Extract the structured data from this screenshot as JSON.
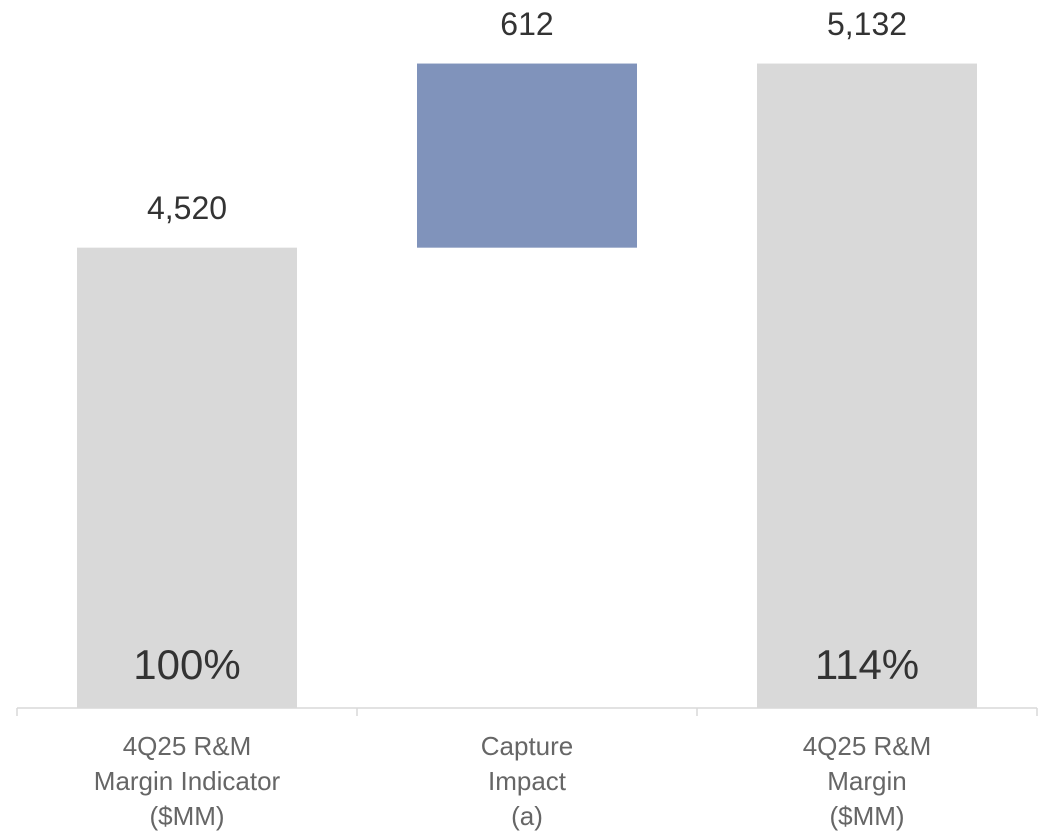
{
  "chart_data": {
    "type": "waterfall",
    "categories": [
      [
        "4Q25 R&M",
        "Margin Indicator",
        "($MM)"
      ],
      [
        "Capture",
        "Impact",
        "(a)"
      ],
      [
        "4Q25 R&M",
        "Margin",
        "($MM)"
      ]
    ],
    "kinds": [
      "total",
      "delta",
      "total"
    ],
    "values": [
      4520,
      612,
      5132
    ],
    "value_labels": [
      "4,520",
      "612",
      "5,132"
    ],
    "percent_labels": [
      "100%",
      null,
      "114%"
    ],
    "colors": [
      "#d9d9d9",
      "#8093bb",
      "#d9d9d9"
    ],
    "ylim": [
      2990,
      5300
    ]
  }
}
